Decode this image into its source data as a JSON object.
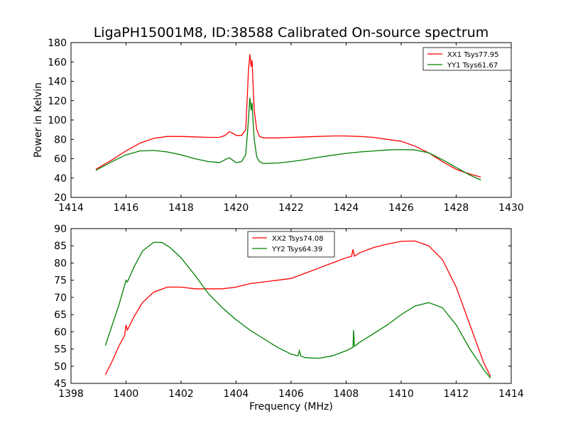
{
  "title": "LigaPH15001M8, ID:38588 Calibrated On-source spectrum",
  "colors": {
    "xx": "#ff0000",
    "yy": "#008000"
  },
  "chart_data": [
    {
      "type": "line",
      "ylabel": "Power in Kelvin",
      "xlabel": "",
      "xlim": [
        1414,
        1430
      ],
      "ylim": [
        20,
        180
      ],
      "xticks": [
        1414,
        1416,
        1418,
        1420,
        1422,
        1424,
        1426,
        1428,
        1430
      ],
      "yticks": [
        20,
        40,
        60,
        80,
        100,
        120,
        140,
        160,
        180
      ],
      "legend_position": "top-right",
      "series": [
        {
          "name": "XX1 Tsys77.95",
          "color": "#ff0000",
          "x": [
            1414.9,
            1415.5,
            1416.0,
            1416.5,
            1417.0,
            1417.5,
            1418.0,
            1418.5,
            1419.0,
            1419.4,
            1419.6,
            1419.75,
            1419.9,
            1420.0,
            1420.2,
            1420.35,
            1420.45,
            1420.5,
            1420.55,
            1420.58,
            1420.62,
            1420.66,
            1420.75,
            1420.85,
            1421.0,
            1421.5,
            1422.0,
            1422.5,
            1423.0,
            1423.5,
            1424.0,
            1424.5,
            1425.0,
            1425.5,
            1426.0,
            1426.5,
            1427.0,
            1427.5,
            1428.0,
            1428.5,
            1428.9
          ],
          "y": [
            49,
            59,
            68,
            76,
            81,
            83,
            83,
            82.5,
            82,
            82,
            84,
            88,
            86,
            84,
            84,
            90,
            150,
            168,
            155,
            162,
            135,
            110,
            90,
            83,
            81.5,
            81.5,
            82,
            82.5,
            83,
            83.5,
            83.5,
            83,
            82,
            80,
            78,
            73,
            66,
            57,
            49,
            44,
            41
          ]
        },
        {
          "name": "YY1 Tsys61.67",
          "color": "#008000",
          "x": [
            1414.9,
            1415.5,
            1416.0,
            1416.5,
            1417.0,
            1417.5,
            1418.0,
            1418.5,
            1419.0,
            1419.4,
            1419.6,
            1419.75,
            1419.9,
            1420.0,
            1420.2,
            1420.35,
            1420.45,
            1420.5,
            1420.55,
            1420.58,
            1420.62,
            1420.66,
            1420.75,
            1420.85,
            1421.0,
            1421.5,
            1422.0,
            1422.5,
            1423.0,
            1423.5,
            1424.0,
            1424.5,
            1425.0,
            1425.5,
            1426.0,
            1426.5,
            1427.0,
            1427.5,
            1428.0,
            1428.5,
            1428.9
          ],
          "y": [
            48,
            57,
            64,
            68,
            68.5,
            67,
            64,
            60,
            57,
            56,
            59,
            61,
            58,
            56,
            57,
            64,
            100,
            123,
            110,
            118,
            98,
            80,
            62,
            57,
            55,
            55.5,
            57,
            59,
            61.5,
            63.5,
            65.5,
            67,
            68,
            69,
            69.5,
            69,
            66,
            59,
            51,
            43,
            38
          ]
        }
      ]
    },
    {
      "type": "line",
      "ylabel": "",
      "xlabel": "Frequency (MHz)",
      "xlim": [
        1398,
        1414
      ],
      "ylim": [
        45,
        90
      ],
      "xticks": [
        1398,
        1400,
        1402,
        1404,
        1406,
        1408,
        1410,
        1412,
        1414
      ],
      "yticks": [
        45,
        50,
        55,
        60,
        65,
        70,
        75,
        80,
        85,
        90
      ],
      "legend_position": "top-center",
      "series": [
        {
          "name": "XX2 Tsys74.08",
          "color": "#ff0000",
          "x": [
            1399.25,
            1399.5,
            1399.75,
            1399.95,
            1400.0,
            1400.05,
            1400.3,
            1400.6,
            1401.0,
            1401.5,
            1402.0,
            1402.5,
            1403.0,
            1403.5,
            1404.0,
            1404.5,
            1405.0,
            1405.5,
            1406.0,
            1406.5,
            1407.0,
            1407.5,
            1408.0,
            1408.2,
            1408.25,
            1408.3,
            1408.5,
            1409.0,
            1409.5,
            1410.0,
            1410.5,
            1411.0,
            1411.5,
            1412.0,
            1412.5,
            1413.0,
            1413.25
          ],
          "y": [
            47.5,
            51.5,
            56,
            59,
            62,
            60.5,
            64.5,
            68.5,
            71.5,
            73,
            73,
            72.5,
            72.5,
            72.5,
            73,
            74,
            74.5,
            75,
            75.5,
            77,
            78.5,
            80,
            81.5,
            82,
            84,
            82,
            83,
            84.5,
            85.5,
            86.3,
            86.4,
            85,
            81,
            73,
            62,
            51,
            47
          ]
        },
        {
          "name": "YY2 Tsys64.39",
          "color": "#008000",
          "x": [
            1399.25,
            1399.5,
            1399.75,
            1400.0,
            1400.05,
            1400.3,
            1400.6,
            1401.0,
            1401.3,
            1401.6,
            1402.0,
            1402.5,
            1403.0,
            1403.5,
            1404.0,
            1404.5,
            1405.0,
            1405.5,
            1406.0,
            1406.25,
            1406.3,
            1406.35,
            1406.5,
            1407.0,
            1407.5,
            1408.0,
            1408.25,
            1408.27,
            1408.3,
            1408.5,
            1409.0,
            1409.5,
            1410.0,
            1410.5,
            1411.0,
            1411.5,
            1412.0,
            1412.5,
            1413.0,
            1413.25
          ],
          "y": [
            56,
            62,
            68,
            75,
            74.5,
            79,
            83.5,
            86,
            86,
            84.5,
            81.5,
            76.5,
            71,
            67,
            63.5,
            60.5,
            58,
            55.5,
            53.5,
            53,
            54.5,
            53,
            52.5,
            52.3,
            53,
            54.5,
            55.5,
            60.5,
            55.8,
            57,
            59.5,
            62,
            65,
            67.5,
            68.5,
            67,
            62,
            55,
            49,
            46.5
          ]
        }
      ]
    }
  ]
}
